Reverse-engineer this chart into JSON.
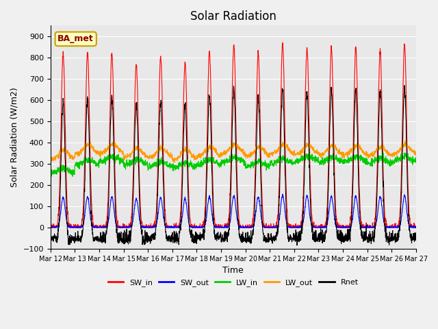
{
  "title": "Solar Radiation",
  "ylabel": "Solar Radiation (W/m2)",
  "xlabel": "Time",
  "annotation": "BA_met",
  "ylim": [
    -100,
    950
  ],
  "yticks": [
    -100,
    0,
    100,
    200,
    300,
    400,
    500,
    600,
    700,
    800,
    900
  ],
  "xtick_labels": [
    "Mar 12",
    "Mar 13",
    "Mar 14",
    "Mar 15",
    "Mar 16",
    "Mar 17",
    "Mar 18",
    "Mar 19",
    "Mar 20",
    "Mar 21",
    "Mar 22",
    "Mar 23",
    "Mar 24",
    "Mar 25",
    "Mar 26",
    "Mar 27"
  ],
  "n_days": 15,
  "background_color": "#e8e8e8",
  "fig_background": "#f0f0f0",
  "sw_in_color": "#ff0000",
  "sw_out_color": "#0000ff",
  "lw_in_color": "#00cc00",
  "lw_out_color": "#ff9900",
  "rnet_color": "#000000",
  "legend_entries": [
    "SW_in",
    "SW_out",
    "LW_in",
    "LW_out",
    "Rnet"
  ],
  "title_fontsize": 12,
  "label_fontsize": 9,
  "tick_fontsize": 8,
  "sw_in_peaks": [
    820,
    820,
    815,
    770,
    805,
    775,
    825,
    860,
    825,
    870,
    840,
    845,
    845,
    830,
    855
  ],
  "lw_in_bases": [
    255,
    295,
    310,
    295,
    285,
    280,
    295,
    305,
    285,
    300,
    310,
    305,
    310,
    300,
    310
  ],
  "lw_out_bases": [
    320,
    345,
    350,
    330,
    330,
    320,
    335,
    345,
    335,
    345,
    345,
    340,
    340,
    335,
    345
  ],
  "night_rnet": [
    -50,
    -55,
    -60,
    -65,
    -55,
    -60,
    -50,
    -55,
    -60,
    -55,
    -55,
    -55,
    -55,
    -55,
    -55
  ]
}
